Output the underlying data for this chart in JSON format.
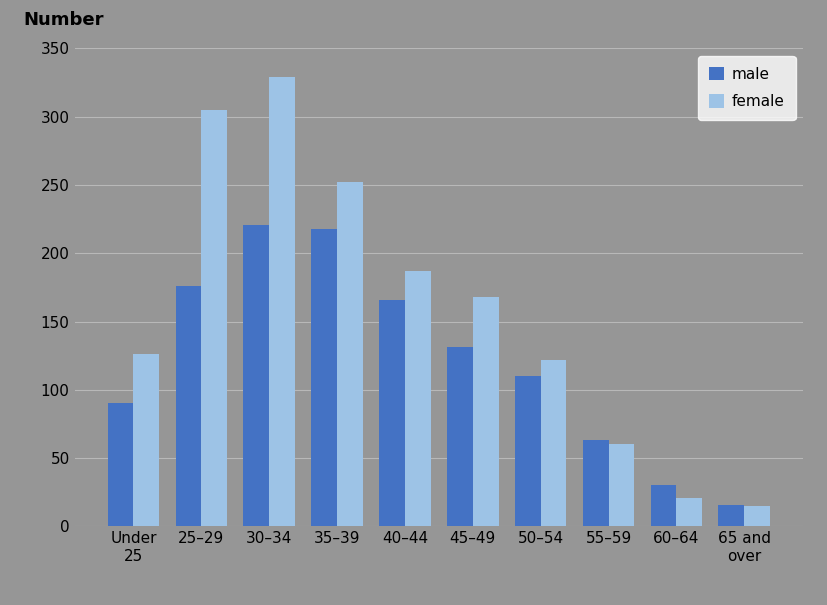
{
  "categories": [
    "Under\n25",
    "25–29",
    "30–34",
    "35–39",
    "40–44",
    "45–49",
    "50–54",
    "55–59",
    "60–64",
    "65 and\nover"
  ],
  "male_values": [
    90,
    176,
    221,
    218,
    166,
    131,
    110,
    63,
    30,
    16
  ],
  "female_values": [
    126,
    305,
    329,
    252,
    187,
    168,
    122,
    60,
    21,
    15
  ],
  "male_color": "#4472C4",
  "female_color": "#9DC3E6",
  "background_color": "#969696",
  "plot_bg_color": "#969696",
  "number_label": "Number",
  "ylim": [
    0,
    350
  ],
  "yticks": [
    0,
    50,
    100,
    150,
    200,
    250,
    300,
    350
  ],
  "grid_color": "#b8b8b8",
  "legend_labels": [
    "male",
    "female"
  ],
  "bar_width": 0.38,
  "tick_fontsize": 11,
  "legend_fontsize": 11,
  "number_fontsize": 13
}
